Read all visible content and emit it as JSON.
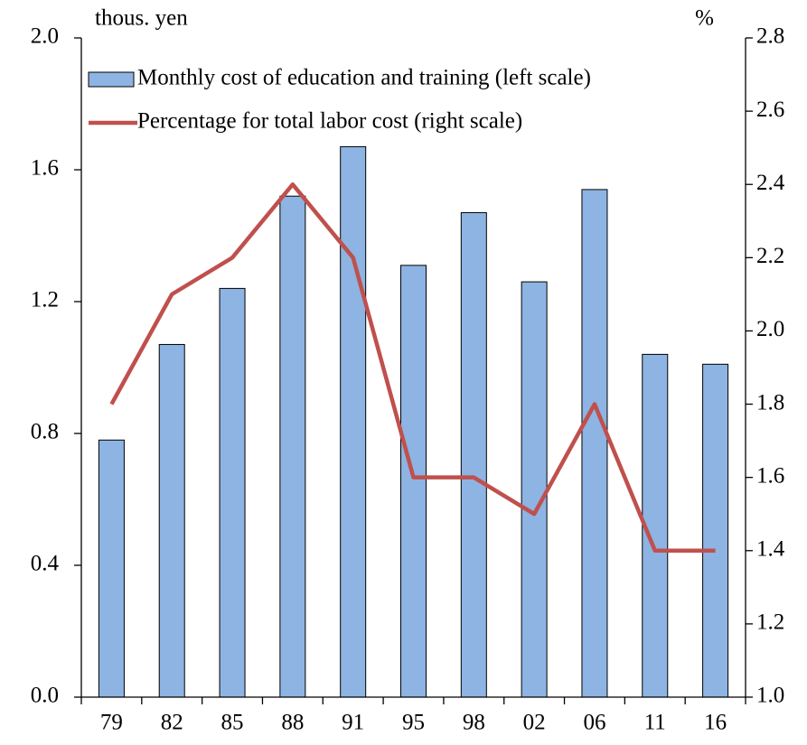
{
  "chart_data": {
    "type": "bar-line",
    "y_unit": "thous. yen",
    "y2_unit": "%",
    "categories": [
      "79",
      "82",
      "85",
      "88",
      "91",
      "95",
      "98",
      "02",
      "06",
      "11",
      "16"
    ],
    "series": [
      {
        "name": "Monthly cost of education and training (left scale)",
        "type": "bar",
        "color": "#8db4e2",
        "values": [
          0.78,
          1.07,
          1.24,
          1.52,
          1.67,
          1.31,
          1.47,
          1.26,
          1.54,
          1.04,
          1.01
        ]
      },
      {
        "name": "Percentage for total labor cost (right scale)",
        "type": "line",
        "axis": "y2",
        "color": "#c0504d",
        "values": [
          1.8,
          2.1,
          2.2,
          2.4,
          2.2,
          1.6,
          1.6,
          1.5,
          1.8,
          1.4,
          1.4
        ]
      }
    ],
    "ylim": [
      0,
      2.0
    ],
    "yticks": [
      {
        "value": 0,
        "label": "0.0"
      },
      0.4,
      0.8,
      1.2,
      1.6,
      {
        "value": 2,
        "label": "2.0"
      }
    ],
    "y2lim": [
      1.0,
      2.8
    ],
    "y2ticks": [
      {
        "value": 1,
        "label": "1.0"
      },
      1.2,
      1.4,
      1.6,
      1.8,
      {
        "value": 2,
        "label": "2.0"
      },
      2.2,
      2.4,
      2.6,
      2.8
    ],
    "legend": "upper-left",
    "grid": false
  }
}
